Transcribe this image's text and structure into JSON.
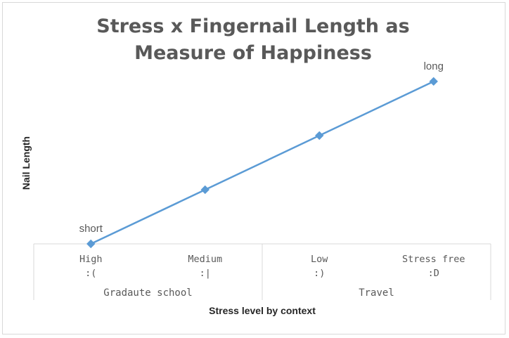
{
  "chart_data": {
    "type": "line",
    "title_lines": [
      "Stress x Fingernail Length as",
      "Measure of Happiness"
    ],
    "xlabel": "Stress level by context",
    "ylabel": "Nail Length",
    "categories": [
      {
        "line1": "High",
        "line2": ":("
      },
      {
        "line1": "Medium",
        "line2": ":|"
      },
      {
        "line1": "Low",
        "line2": ":)"
      },
      {
        "line1": "Stress free",
        "line2": ":D"
      }
    ],
    "groups": [
      {
        "label": "Gradaute school",
        "span": [
          0,
          1
        ]
      },
      {
        "label": "Travel",
        "span": [
          2,
          3
        ]
      }
    ],
    "series": [
      {
        "values": [
          0,
          1,
          2,
          3
        ],
        "color": "#5b9bd5",
        "marker": "diamond"
      }
    ],
    "ylim": [
      0,
      3.05
    ],
    "data_labels": [
      {
        "index": 0,
        "text": "short"
      },
      {
        "index": 3,
        "text": "long"
      }
    ],
    "grid": false,
    "legend": "none"
  }
}
